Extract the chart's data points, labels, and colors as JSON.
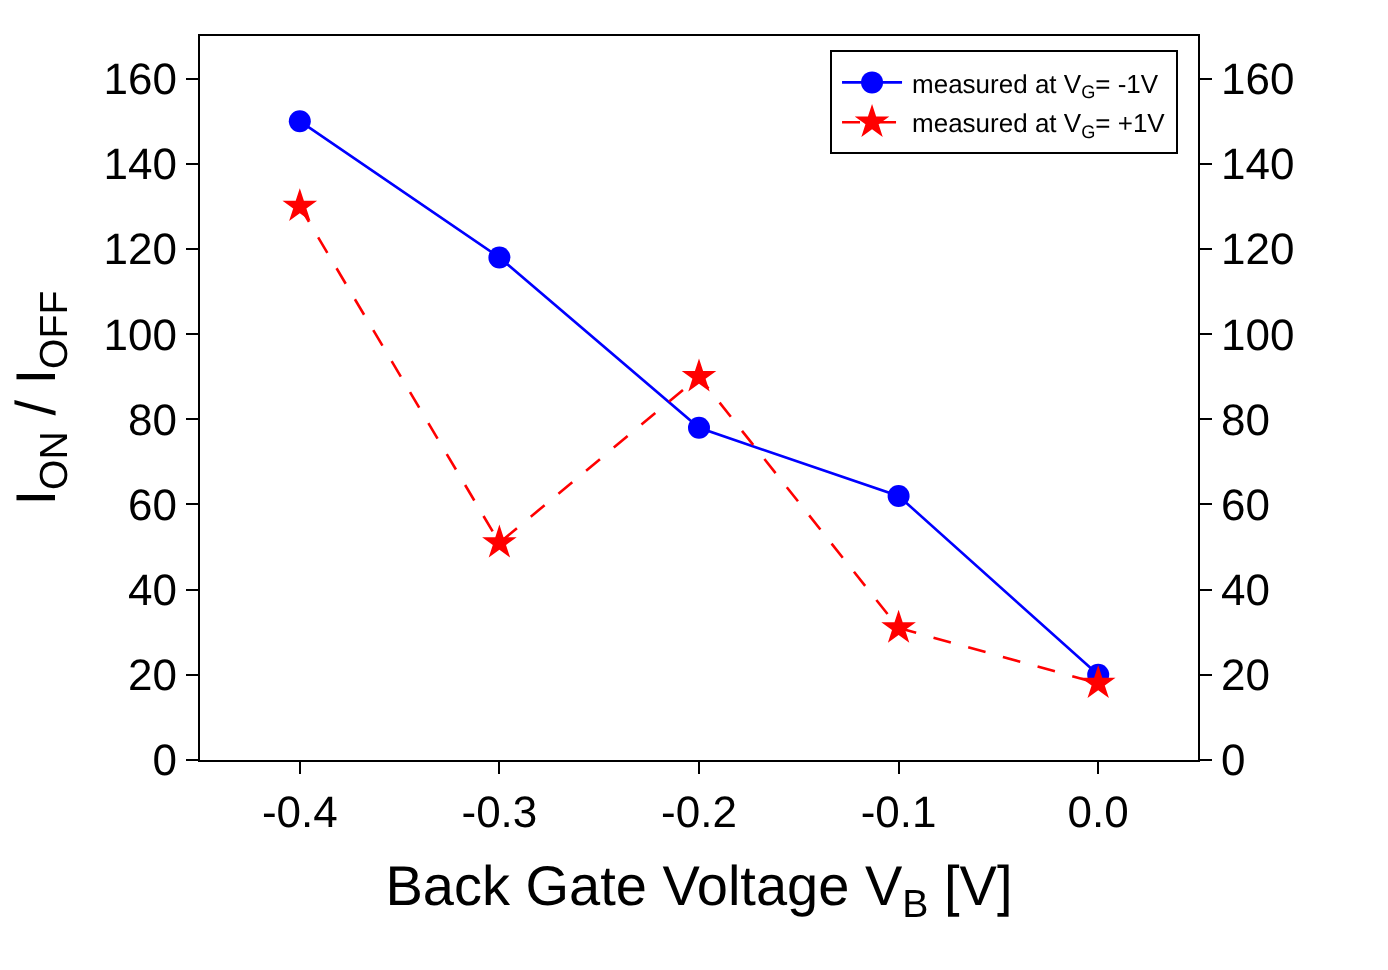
{
  "chart_data": {
    "type": "line",
    "xlabel": "Back Gate Voltage V$_{B}$ [V]",
    "ylabel": "I$_{ON}$ / I$_{OFF}$",
    "x": [
      -0.4,
      -0.3,
      -0.2,
      -0.1,
      0.0
    ],
    "series": [
      {
        "name": "measured at V$_{G}$= -1V",
        "color": "#0000ff",
        "values": [
          150,
          118,
          78,
          62,
          20
        ],
        "marker": "circle",
        "line_style": "solid"
      },
      {
        "name": "measured at V$_{G}$= +1V",
        "color": "#ff0000",
        "values": [
          130,
          51,
          90,
          31,
          18
        ],
        "marker": "star",
        "line_style": "dashed"
      }
    ],
    "xlim": [
      -0.45,
      0.05
    ],
    "xticks": [
      {
        "value": -0.4,
        "label": "-0.4"
      },
      {
        "value": -0.3,
        "label": "-0.3"
      },
      {
        "value": -0.2,
        "label": "-0.2"
      },
      {
        "value": -0.1,
        "label": "-0.1"
      },
      {
        "value": 0.0,
        "label": "0.0"
      }
    ],
    "ylim": [
      0,
      170
    ],
    "yticks": [
      0,
      20,
      40,
      60,
      80,
      100,
      120,
      140,
      160
    ],
    "y2lim": [
      0,
      170
    ],
    "y2ticks": [
      0,
      20,
      40,
      60,
      80,
      100,
      120,
      140,
      160
    ],
    "legend": "top right"
  }
}
